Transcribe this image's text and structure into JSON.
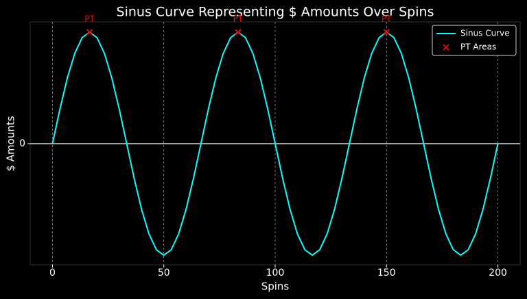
{
  "chart_data": {
    "type": "line",
    "title": "Sinus Curve Representing $ Amounts Over Spins",
    "x_label": "Spins",
    "y_label": "$ Amounts",
    "x": [
      0,
      3.333,
      6.667,
      10,
      13.333,
      16.667,
      20,
      23.333,
      26.667,
      30,
      33.333,
      36.667,
      40,
      43.333,
      46.667,
      50,
      53.333,
      56.667,
      60,
      63.333,
      66.667,
      70,
      73.333,
      76.667,
      80,
      83.333,
      86.667,
      90,
      93.333,
      96.667,
      100,
      103.333,
      106.667,
      110,
      113.333,
      116.667,
      120,
      123.333,
      126.667,
      130,
      133.333,
      136.667,
      140,
      143.333,
      146.667,
      150,
      153.333,
      156.667,
      160,
      163.333,
      166.667,
      170,
      173.333,
      176.667,
      180,
      183.333,
      186.667,
      190,
      193.333,
      196.667,
      200
    ],
    "series": [
      {
        "name": "Sinus Curve",
        "color": "#00ffff",
        "values": [
          0,
          0.309,
          0.588,
          0.809,
          0.951,
          1,
          0.951,
          0.809,
          0.588,
          0.309,
          0,
          -0.309,
          -0.588,
          -0.809,
          -0.951,
          -1,
          -0.951,
          -0.809,
          -0.588,
          -0.309,
          0,
          0.309,
          0.588,
          0.809,
          0.951,
          1,
          0.951,
          0.809,
          0.588,
          0.309,
          0,
          -0.309,
          -0.588,
          -0.809,
          -0.951,
          -1,
          -0.951,
          -0.809,
          -0.588,
          -0.309,
          0,
          0.309,
          0.588,
          0.809,
          0.951,
          1,
          0.951,
          0.809,
          0.588,
          0.309,
          0,
          -0.309,
          -0.588,
          -0.809,
          -0.951,
          -1,
          -0.951,
          -0.809,
          -0.588,
          -0.309,
          0
        ]
      },
      {
        "name": "PT Areas",
        "color": "#ff0000",
        "marker": "x",
        "x": [
          16.667,
          83.333,
          150
        ],
        "values": [
          1,
          1,
          1
        ],
        "point_labels": [
          "PT",
          "PT",
          "PT"
        ]
      }
    ],
    "reference_line": 0,
    "xlim": [
      -10,
      210
    ],
    "ylim": [
      -1.086,
      1.092
    ],
    "xticks": [
      0,
      50,
      100,
      150,
      200
    ],
    "yticks": [
      0
    ],
    "grid": true,
    "legend": "upper right"
  }
}
